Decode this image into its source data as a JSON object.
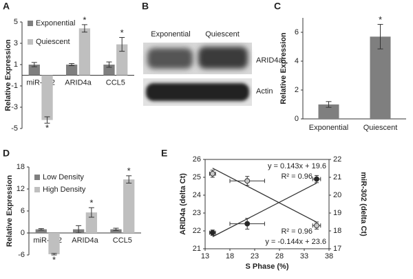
{
  "chart_data": [
    {
      "type": "bar",
      "panel_label": "A",
      "y_label": "Relative Expression",
      "categories": [
        "miR-302",
        "ARID4a",
        "CCL5"
      ],
      "series": [
        {
          "name": "Exponential",
          "color": "#7f7f7f",
          "values": [
            1,
            1,
            1
          ],
          "errors": [
            0.2,
            0.1,
            0.25
          ]
        },
        {
          "name": "Quiescent",
          "color": "#bfbfbf",
          "values": [
            -4.2,
            4.4,
            2.9
          ],
          "errors": [
            0.3,
            0.35,
            0.65
          ],
          "markers": [
            "*",
            "*",
            "*"
          ]
        }
      ],
      "ylim": [
        -5,
        5
      ],
      "yticks": [
        -5,
        -3,
        -1,
        1,
        3,
        5
      ],
      "legend": "upper left"
    },
    {
      "type": "bar",
      "panel_label": "C",
      "y_label": "Relative Expression",
      "categories": [
        "Exponential",
        "Quiescent"
      ],
      "color": "#7f7f7f",
      "values": [
        1.0,
        5.7
      ],
      "errors": [
        0.2,
        0.85
      ],
      "markers": [
        null,
        "*"
      ],
      "ylim": [
        0,
        7
      ],
      "yticks": [
        0,
        2,
        4,
        6
      ]
    },
    {
      "type": "bar",
      "panel_label": "D",
      "y_label": "Relative Expression",
      "categories": [
        "miR-302",
        "ARID4a",
        "CCL5"
      ],
      "series": [
        {
          "name": "Low Density",
          "color": "#7f7f7f",
          "values": [
            1,
            1,
            1
          ],
          "errors": [
            0.2,
            1.0,
            0.3
          ]
        },
        {
          "name": "High Density",
          "color": "#bfbfbf",
          "values": [
            -5.8,
            5.6,
            14.6
          ],
          "errors": [
            0.2,
            1.3,
            1.0
          ],
          "markers": [
            "*",
            "*",
            "*"
          ]
        }
      ],
      "ylim": [
        -6,
        18
      ],
      "yticks": [
        -6,
        0,
        6,
        12,
        18
      ],
      "legend": "upper left"
    },
    {
      "type": "scatter",
      "panel_label": "E",
      "x_label": "S Phase (%)",
      "y_label": "ARID4a (delta Ct)",
      "y2_label": "miR-302 (delta Ct)",
      "xlim": [
        13,
        38
      ],
      "xticks": [
        13,
        18,
        23,
        28,
        33,
        38
      ],
      "ylim": [
        21,
        26
      ],
      "yticks": [
        21,
        22,
        23,
        24,
        25,
        26
      ],
      "y2lim": [
        17,
        22
      ],
      "y2ticks": [
        17,
        18,
        19,
        20,
        21,
        22
      ],
      "series": [
        {
          "color": "#262626",
          "x": [
            14.5,
            21.5,
            35.5
          ],
          "values": [
            21.9,
            22.4,
            24.9
          ],
          "xerr": [
            0.6,
            3.5,
            0.8
          ],
          "yerr": [
            0.15,
            0.3,
            0.2
          ],
          "trendline": {
            "slope": 0.143,
            "intercept": 19.6,
            "label": "y = 0.143x + 19.6",
            "r2_label": "R² = 0.96"
          }
        },
        {
          "axis": "y2",
          "color": "#c8c8c8",
          "x": [
            14.5,
            21.5,
            35.5
          ],
          "values": [
            21.2,
            20.8,
            18.3
          ],
          "xerr": [
            0.6,
            3.5,
            0.8
          ],
          "yerr": [
            0.2,
            0.25,
            0.2
          ],
          "trendline": {
            "slope": -0.144,
            "intercept": 23.6,
            "label": "y = -0.144x + 23.6",
            "r2_label": "R² = 0.96"
          }
        }
      ]
    }
  ],
  "blot": {
    "panel_label": "B",
    "columns": [
      "Exponential",
      "Quiescent"
    ],
    "rows": [
      "ARID4a",
      "Actin"
    ]
  }
}
